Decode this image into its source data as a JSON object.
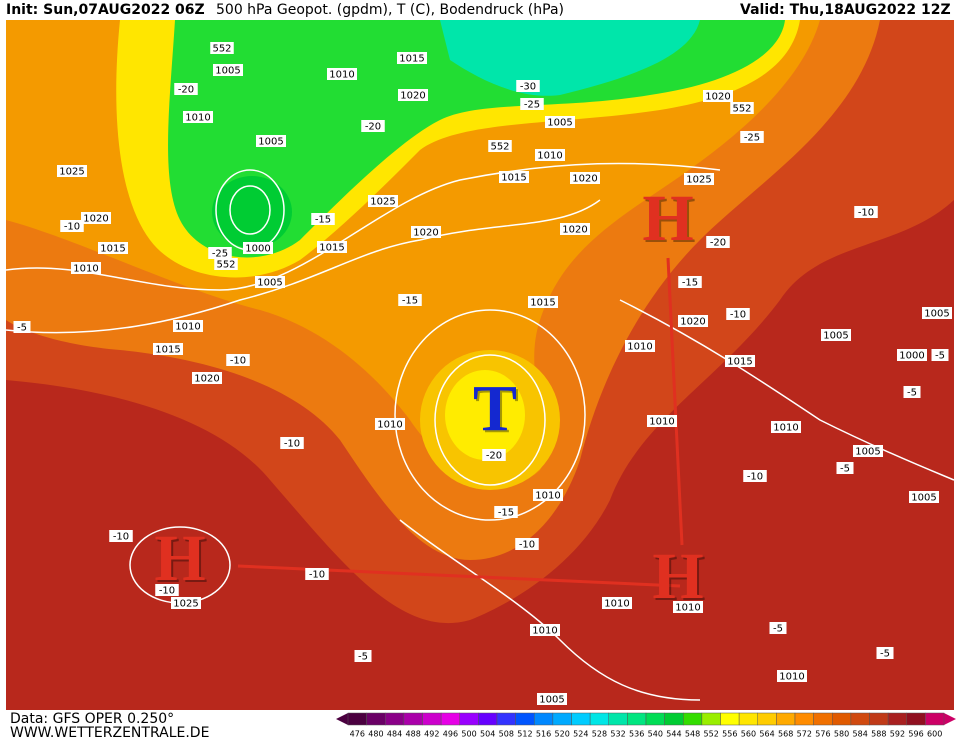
{
  "header": {
    "init": "Init: Sun,07AUG2022 06Z",
    "title": "500 hPa Geopot. (gpdm), T (C), Bodendruck (hPa)",
    "valid": "Valid: Thu,18AUG2022 12Z"
  },
  "labels": [
    "552",
    "1005",
    "1010",
    "1015",
    "-20",
    "1010",
    "1020",
    "-30",
    "-25",
    "1005",
    "1020",
    "552",
    "-25",
    "1005",
    "-20",
    "552",
    "1010",
    "1025",
    "1015",
    "1020",
    "1025",
    "1025",
    "-15",
    "-10",
    "1020",
    "-10",
    "1020",
    "1020",
    "-20",
    "-25",
    "1015",
    "1000",
    "552",
    "1015",
    "1010",
    "1005",
    "-15",
    "-15",
    "1015",
    "-5",
    "1010",
    "1020",
    "-10",
    "1005",
    "1015",
    "-10",
    "1010",
    "1005",
    "-5",
    "1000",
    "1015",
    "1020",
    "-5",
    "1010",
    "1010",
    "1010",
    "-10",
    "-20",
    "1005",
    "-5",
    "-10",
    "1010",
    "1005",
    "-15",
    "-10",
    "-10",
    "-10",
    "-10",
    "1025",
    "1010",
    "1010",
    "-5",
    "1010",
    "-5",
    "-5",
    "1010",
    "1005"
  ],
  "centers": [
    "H",
    "H",
    "H",
    "T"
  ],
  "footer": {
    "data": "Data: GFS OPER 0.250°",
    "site": "WWW.WETTERZENTRALE.DE"
  },
  "colorbar": {
    "values": [
      476,
      480,
      484,
      488,
      492,
      496,
      500,
      504,
      508,
      512,
      516,
      520,
      524,
      528,
      532,
      536,
      540,
      544,
      548,
      552,
      556,
      560,
      564,
      568,
      572,
      576,
      580,
      584,
      588,
      592,
      596,
      600
    ],
    "colors": [
      "#4b0040",
      "#6a0066",
      "#8a0088",
      "#aa00aa",
      "#cc00cc",
      "#e600e6",
      "#9900ff",
      "#6600ff",
      "#3333ff",
      "#0055ff",
      "#0088ff",
      "#00aaff",
      "#00ccff",
      "#00e6e6",
      "#00e6aa",
      "#00e680",
      "#00dd55",
      "#00cc33",
      "#33dd00",
      "#99ee00",
      "#ffff00",
      "#ffe600",
      "#ffcc00",
      "#ffaa00",
      "#ff8c00",
      "#f07000",
      "#e05a00",
      "#d04a10",
      "#c03a18",
      "#a82020",
      "#901020",
      "#cc0066"
    ]
  }
}
